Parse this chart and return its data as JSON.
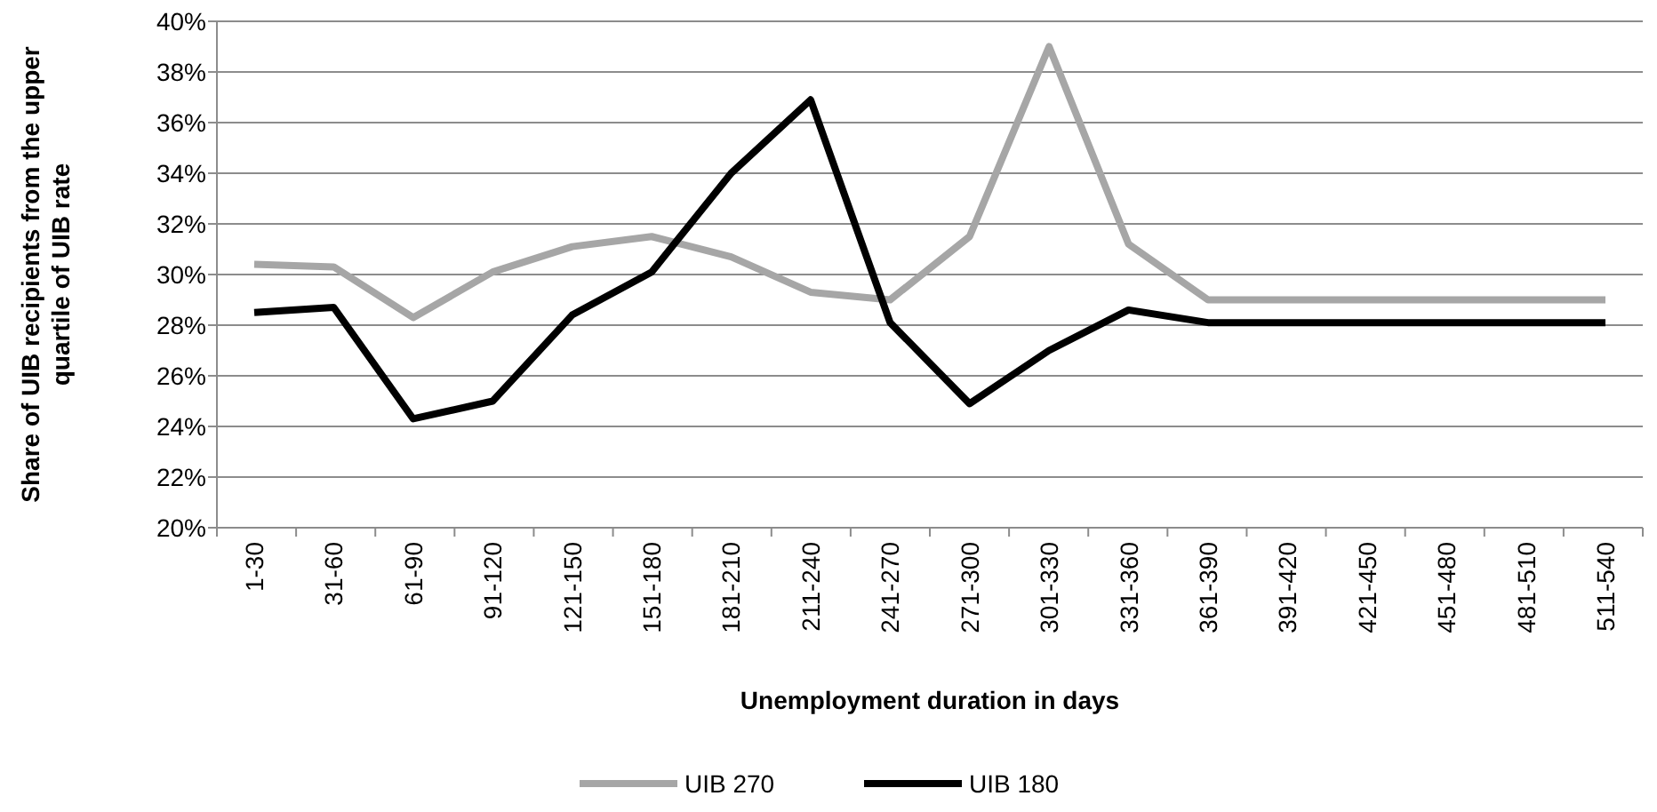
{
  "chart_data": {
    "type": "line",
    "xlabel": "Unemployment duration in days",
    "ylabel": "Share of UIB recipients from the upper quartile of UIB rate",
    "categories": [
      "1-30",
      "31-60",
      "61-90",
      "91-120",
      "121-150",
      "151-180",
      "181-210",
      "211-240",
      "241-270",
      "271-300",
      "301-330",
      "331-360",
      "361-390",
      "391-420",
      "421-450",
      "451-480",
      "481-510",
      "511-540"
    ],
    "series": [
      {
        "name": "UIB 270",
        "color": "#a6a6a6",
        "values": [
          30.4,
          30.3,
          28.3,
          30.1,
          31.1,
          31.5,
          30.7,
          29.3,
          29.0,
          31.5,
          39.0,
          31.2,
          29.0,
          29.0,
          29.0,
          29.0,
          29.0,
          29.0
        ]
      },
      {
        "name": "UIB 180",
        "color": "#000000",
        "values": [
          28.5,
          28.7,
          24.3,
          25.0,
          28.4,
          30.1,
          34.0,
          36.9,
          28.1,
          24.9,
          27.0,
          28.6,
          28.1,
          28.1,
          28.1,
          28.1,
          28.1,
          28.1
        ]
      }
    ],
    "ylim": [
      20,
      40
    ],
    "yticks": [
      {
        "value": 20,
        "label": "20%"
      },
      {
        "value": 22,
        "label": "22%"
      },
      {
        "value": 24,
        "label": "24%"
      },
      {
        "value": 26,
        "label": "26%"
      },
      {
        "value": 28,
        "label": "28%"
      },
      {
        "value": 30,
        "label": "30%"
      },
      {
        "value": 32,
        "label": "32%"
      },
      {
        "value": 34,
        "label": "34%"
      },
      {
        "value": 36,
        "label": "36%"
      },
      {
        "value": 38,
        "label": "38%"
      },
      {
        "value": 40,
        "label": "40%"
      }
    ],
    "grid": "y",
    "legend": "bottom",
    "marker": "none",
    "line_style": "solid"
  }
}
